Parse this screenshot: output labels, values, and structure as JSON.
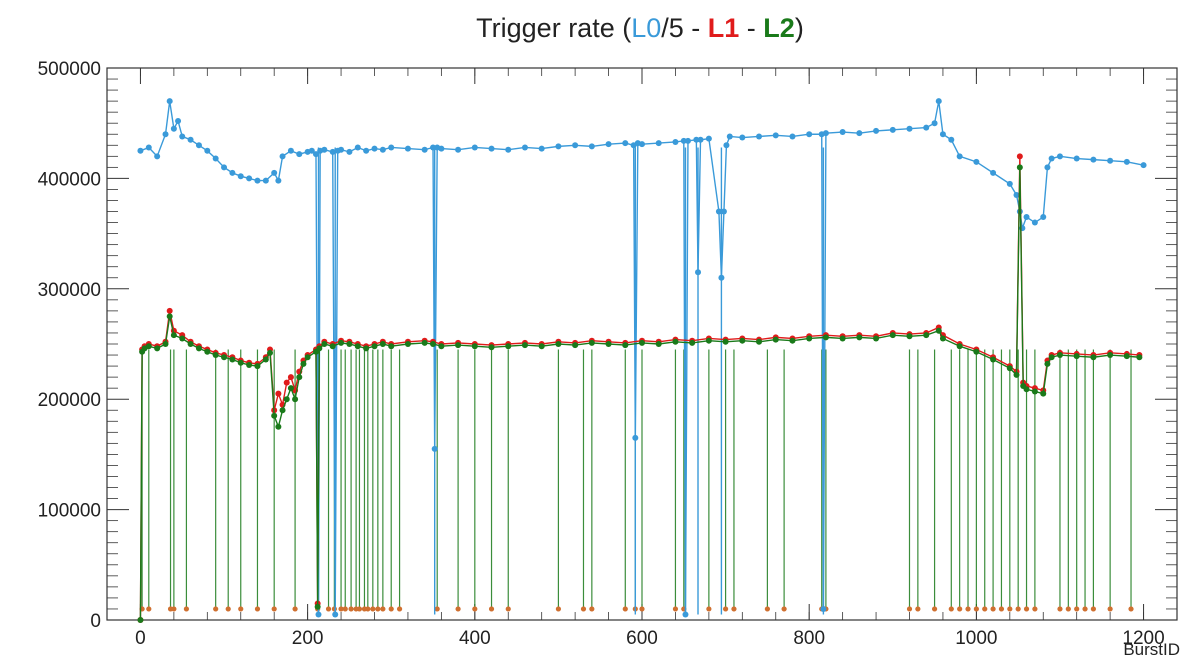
{
  "chart_data": {
    "type": "line",
    "title": {
      "prefix": "Trigger rate (",
      "l0": "L0",
      "l0_suffix": "/5 - ",
      "l1": "L1",
      "sep": " - ",
      "l2": "L2",
      "suffix": ")"
    },
    "xlabel": "BurstID",
    "ylabel": "",
    "xlim": [
      -40,
      1240
    ],
    "ylim": [
      0,
      500000
    ],
    "x_ticks": [
      0,
      200,
      400,
      600,
      800,
      1000,
      1200
    ],
    "x_tick_labels": [
      "0",
      "200",
      "400",
      "600",
      "800",
      "1000",
      "1200"
    ],
    "y_ticks": [
      0,
      100000,
      200000,
      300000,
      400000,
      500000
    ],
    "y_tick_labels": [
      "0",
      "100000",
      "200000",
      "300000",
      "400000",
      "500000"
    ],
    "colors": {
      "L0": "#3a9ad9",
      "L1": "#e01b1b",
      "L2": "#1a7a1a"
    },
    "series": [
      {
        "name": "L0",
        "color": "#3a9ad9",
        "x": [
          0,
          10,
          20,
          30,
          35,
          40,
          45,
          50,
          60,
          70,
          80,
          90,
          100,
          110,
          120,
          130,
          140,
          150,
          160,
          165,
          170,
          180,
          190,
          200,
          205,
          210,
          213,
          215,
          220,
          230,
          233,
          236,
          240,
          250,
          260,
          270,
          280,
          290,
          300,
          320,
          340,
          350,
          352,
          355,
          360,
          380,
          400,
          420,
          440,
          460,
          480,
          500,
          520,
          540,
          560,
          580,
          590,
          592,
          595,
          600,
          620,
          640,
          650,
          652,
          655,
          665,
          667,
          670,
          680,
          692,
          695,
          698,
          701,
          705,
          720,
          740,
          760,
          780,
          800,
          815,
          817,
          820,
          840,
          860,
          880,
          900,
          920,
          940,
          950,
          955,
          960,
          970,
          980,
          1000,
          1020,
          1040,
          1048,
          1052,
          1055,
          1060,
          1070,
          1080,
          1085,
          1090,
          1100,
          1120,
          1140,
          1160,
          1180,
          1200
        ],
        "values": [
          425000,
          428000,
          420000,
          440000,
          470000,
          445000,
          452000,
          438000,
          435000,
          430000,
          425000,
          418000,
          410000,
          405000,
          402000,
          400000,
          398000,
          398000,
          405000,
          398000,
          420000,
          425000,
          422000,
          424000,
          425000,
          422000,
          5000,
          425000,
          426000,
          424000,
          5000,
          425000,
          426000,
          424000,
          428000,
          425000,
          427000,
          426000,
          428000,
          427000,
          426000,
          428000,
          155000,
          428000,
          427000,
          426000,
          428000,
          427000,
          426000,
          428000,
          427000,
          429000,
          430000,
          429000,
          431000,
          432000,
          430000,
          165000,
          432000,
          431000,
          432000,
          433000,
          434000,
          5000,
          434000,
          435000,
          315000,
          435000,
          436000,
          370000,
          310000,
          370000,
          430000,
          438000,
          437000,
          438000,
          439000,
          438000,
          440000,
          440000,
          10000,
          441000,
          442000,
          441000,
          443000,
          444000,
          445000,
          446000,
          450000,
          470000,
          440000,
          435000,
          420000,
          415000,
          405000,
          395000,
          385000,
          370000,
          355000,
          365000,
          360000,
          365000,
          410000,
          418000,
          420000,
          418000,
          417000,
          416000,
          415000,
          412000
        ]
      },
      {
        "name": "L1",
        "color": "#e01b1b",
        "x": [
          0,
          2,
          5,
          10,
          20,
          30,
          35,
          40,
          50,
          60,
          70,
          80,
          90,
          100,
          110,
          120,
          130,
          140,
          150,
          155,
          160,
          165,
          170,
          175,
          180,
          185,
          190,
          195,
          200,
          210,
          212,
          214,
          220,
          230,
          240,
          250,
          260,
          270,
          280,
          290,
          300,
          320,
          340,
          350,
          360,
          380,
          400,
          420,
          440,
          460,
          480,
          500,
          520,
          540,
          560,
          580,
          600,
          620,
          640,
          660,
          680,
          700,
          720,
          740,
          760,
          780,
          800,
          820,
          840,
          860,
          880,
          900,
          920,
          940,
          955,
          960,
          980,
          1000,
          1020,
          1040,
          1048,
          1052,
          1056,
          1060,
          1070,
          1080,
          1085,
          1090,
          1100,
          1120,
          1140,
          1160,
          1180,
          1195
        ],
        "values": [
          0,
          245000,
          248000,
          250000,
          248000,
          252000,
          280000,
          262000,
          258000,
          252000,
          248000,
          245000,
          242000,
          240000,
          238000,
          235000,
          233000,
          232000,
          238000,
          245000,
          190000,
          205000,
          195000,
          215000,
          220000,
          208000,
          225000,
          235000,
          240000,
          245000,
          15000,
          248000,
          252000,
          250000,
          253000,
          252000,
          250000,
          248000,
          250000,
          252000,
          250000,
          252000,
          253000,
          252000,
          250000,
          251000,
          250000,
          249000,
          250000,
          251000,
          250000,
          252000,
          251000,
          253000,
          252000,
          251000,
          253000,
          252000,
          254000,
          253000,
          255000,
          254000,
          255000,
          254000,
          256000,
          255000,
          257000,
          258000,
          257000,
          258000,
          257000,
          260000,
          259000,
          260000,
          265000,
          258000,
          250000,
          245000,
          238000,
          230000,
          225000,
          420000,
          215000,
          212000,
          210000,
          208000,
          235000,
          240000,
          242000,
          241000,
          240000,
          242000,
          241000,
          240000
        ]
      },
      {
        "name": "L2",
        "color": "#1a7a1a",
        "x": [
          0,
          2,
          5,
          10,
          20,
          30,
          35,
          40,
          50,
          60,
          70,
          80,
          90,
          100,
          110,
          120,
          130,
          140,
          150,
          155,
          160,
          165,
          170,
          175,
          180,
          185,
          190,
          195,
          200,
          210,
          212,
          214,
          220,
          230,
          240,
          250,
          260,
          270,
          280,
          290,
          300,
          320,
          340,
          350,
          360,
          380,
          400,
          420,
          440,
          460,
          480,
          500,
          520,
          540,
          560,
          580,
          600,
          620,
          640,
          660,
          680,
          700,
          720,
          740,
          760,
          780,
          800,
          820,
          840,
          860,
          880,
          900,
          920,
          940,
          955,
          960,
          980,
          1000,
          1020,
          1040,
          1048,
          1052,
          1056,
          1060,
          1070,
          1080,
          1085,
          1090,
          1100,
          1120,
          1140,
          1160,
          1180,
          1195
        ],
        "values": [
          0,
          243000,
          246000,
          248000,
          246000,
          250000,
          275000,
          258000,
          255000,
          250000,
          246000,
          243000,
          240000,
          238000,
          236000,
          233000,
          231000,
          230000,
          236000,
          242000,
          185000,
          175000,
          190000,
          200000,
          210000,
          200000,
          220000,
          232000,
          238000,
          243000,
          12000,
          246000,
          250000,
          248000,
          251000,
          250000,
          248000,
          246000,
          248000,
          250000,
          248000,
          250000,
          251000,
          250000,
          248000,
          249000,
          248000,
          247000,
          248000,
          249000,
          248000,
          250000,
          249000,
          251000,
          250000,
          249000,
          251000,
          250000,
          252000,
          251000,
          253000,
          252000,
          253000,
          252000,
          254000,
          253000,
          255000,
          256000,
          255000,
          256000,
          255000,
          258000,
          257000,
          258000,
          262000,
          255000,
          248000,
          243000,
          236000,
          228000,
          222000,
          410000,
          212000,
          209000,
          207000,
          205000,
          232000,
          238000,
          240000,
          239000,
          238000,
          240000,
          239000,
          238000
        ]
      }
    ],
    "drop_lines": {
      "L0_x": [
        213,
        233,
        352,
        592,
        652,
        667,
        695,
        817
      ],
      "L2_x": [
        2,
        10,
        36,
        40,
        55,
        90,
        105,
        120,
        140,
        160,
        185,
        212,
        225,
        232,
        240,
        245,
        252,
        258,
        262,
        268,
        272,
        278,
        284,
        290,
        300,
        310,
        355,
        380,
        400,
        420,
        440,
        500,
        530,
        540,
        580,
        592,
        600,
        640,
        650,
        680,
        700,
        710,
        750,
        770,
        815,
        820,
        920,
        930,
        950,
        970,
        980,
        990,
        1000,
        1010,
        1020,
        1030,
        1040,
        1050,
        1060,
        1070,
        1100,
        1110,
        1120,
        1130,
        1140,
        1160,
        1185
      ]
    }
  }
}
